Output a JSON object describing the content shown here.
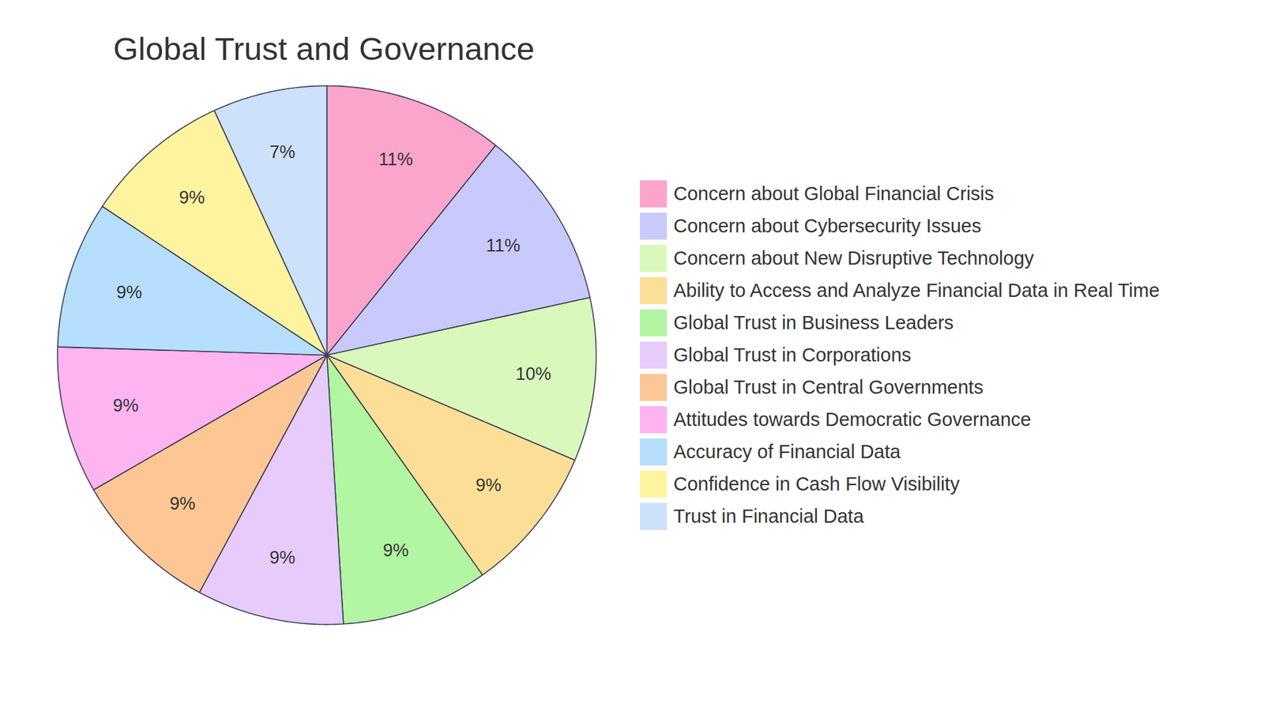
{
  "chart_data": {
    "type": "pie",
    "title": "Global Trust and Governance",
    "categories": [
      "Concern about Global Financial Crisis",
      "Concern about Cybersecurity Issues",
      "Concern about New Disruptive Technology",
      "Ability to Access and Analyze Financial Data in Real Time",
      "Global Trust in Business Leaders",
      "Global Trust in Corporations",
      "Global Trust in Central Governments",
      "Attitudes towards Democratic Governance",
      "Accuracy of Financial Data",
      "Confidence in Cash Flow Visibility",
      "Trust in Financial Data"
    ],
    "values": [
      11,
      11,
      10,
      9,
      9,
      9,
      9,
      9,
      9,
      9,
      7
    ],
    "value_labels": [
      "11%",
      "11%",
      "10%",
      "9%",
      "9%",
      "9%",
      "9%",
      "9%",
      "9%",
      "9%",
      "7%"
    ],
    "colors": [
      "#FBA4CC",
      "#C9C9FB",
      "#DAF8BC",
      "#FDDE97",
      "#B2F5A2",
      "#E7CBFB",
      "#FDC795",
      "#FDB4F1",
      "#B6DEFD",
      "#FEF49F",
      "#CEE1FB"
    ],
    "data_labels": true,
    "legend": "right"
  }
}
